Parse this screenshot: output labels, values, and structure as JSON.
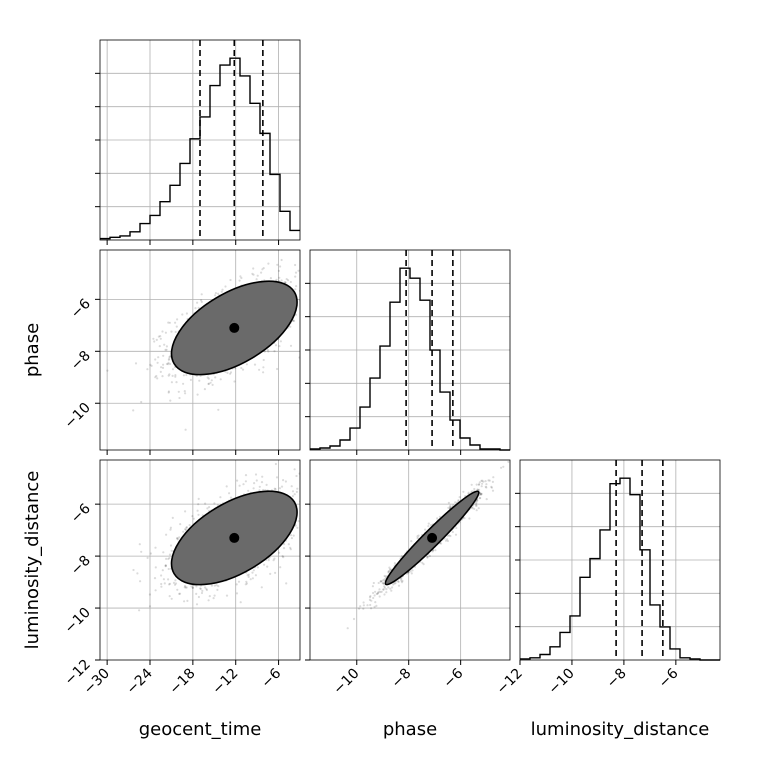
{
  "chart_data": {
    "type": "corner",
    "parameters": [
      "geocent_time",
      "phase",
      "luminosity_distance"
    ],
    "axis_labels": {
      "x": [
        "geocent_time",
        "phase",
        "luminosity_distance"
      ],
      "y": [
        "phase",
        "luminosity_distance"
      ]
    },
    "ranges": {
      "geocent_time": [
        -31,
        -3
      ],
      "phase": [
        -11.8,
        -4.1
      ],
      "luminosity_distance": [
        -12,
        -4.3
      ]
    },
    "ticks": {
      "geocent_time": {
        "values": [
          -30,
          -24,
          -18,
          -12,
          -6
        ],
        "labels": [
          "−30",
          "−24",
          "−18",
          "−12",
          "−6"
        ]
      },
      "phase": {
        "values": [
          -10,
          -8,
          -6
        ],
        "labels": [
          "−10",
          "−8",
          "−6"
        ]
      },
      "luminosity_distance": {
        "values": [
          -12,
          -10,
          -8,
          -6
        ],
        "labels": [
          "−12",
          "−10",
          "−8",
          "−6"
        ]
      }
    },
    "quantiles": {
      "geocent_time": [
        -17,
        -12.2,
        -8.2
      ],
      "phase": [
        -8.1,
        -7.1,
        -6.3
      ],
      "luminosity_distance": [
        -8.3,
        -7.3,
        -6.5
      ]
    },
    "histograms": {
      "geocent_time": {
        "bins": [
          -31,
          -29.6,
          -28.2,
          -26.8,
          -25.4,
          -24,
          -22.6,
          -21.2,
          -19.8,
          -18.4,
          -17,
          -15.6,
          -14.2,
          -12.8,
          -11.4,
          -10,
          -8.6,
          -7.2,
          -5.8,
          -4.4,
          -3
        ],
        "counts": [
          1,
          2,
          3,
          6,
          12,
          18,
          28,
          40,
          56,
          74,
          90,
          113,
          128,
          133,
          120,
          100,
          78,
          48,
          21,
          7
        ]
      },
      "phase": {
        "bins": [
          -11.8,
          -11.415,
          -11.03,
          -10.645,
          -10.26,
          -9.875,
          -9.49,
          -9.105,
          -8.72,
          -8.335,
          -7.95,
          -7.565,
          -7.18,
          -6.795,
          -6.41,
          -6.025,
          -5.64,
          -5.255,
          -4.87,
          -4.485,
          -4.1
        ],
        "counts": [
          1,
          2,
          4,
          10,
          22,
          43,
          72,
          104,
          148,
          182,
          172,
          150,
          100,
          58,
          30,
          12,
          5,
          1,
          1,
          0
        ]
      },
      "luminosity_distance": {
        "bins": [
          -12,
          -11.615,
          -11.23,
          -10.845,
          -10.46,
          -10.075,
          -9.69,
          -9.305,
          -8.92,
          -8.535,
          -8.15,
          -7.765,
          -7.38,
          -6.995,
          -6.61,
          -6.225,
          -5.84,
          -5.455,
          -5.07,
          -4.685,
          -4.3
        ],
        "counts": [
          1,
          2,
          5,
          12,
          25,
          40,
          75,
          92,
          118,
          160,
          165,
          150,
          100,
          50,
          30,
          10,
          2,
          1,
          0,
          0
        ]
      }
    },
    "correlations": {
      "phase|geocent_time": 0.55,
      "luminosity_distance|geocent_time": 0.55,
      "luminosity_distance|phase": 0.97
    },
    "contour_levels": [
      0.118,
      0.393,
      0.675,
      0.864
    ],
    "show_grid": true
  }
}
